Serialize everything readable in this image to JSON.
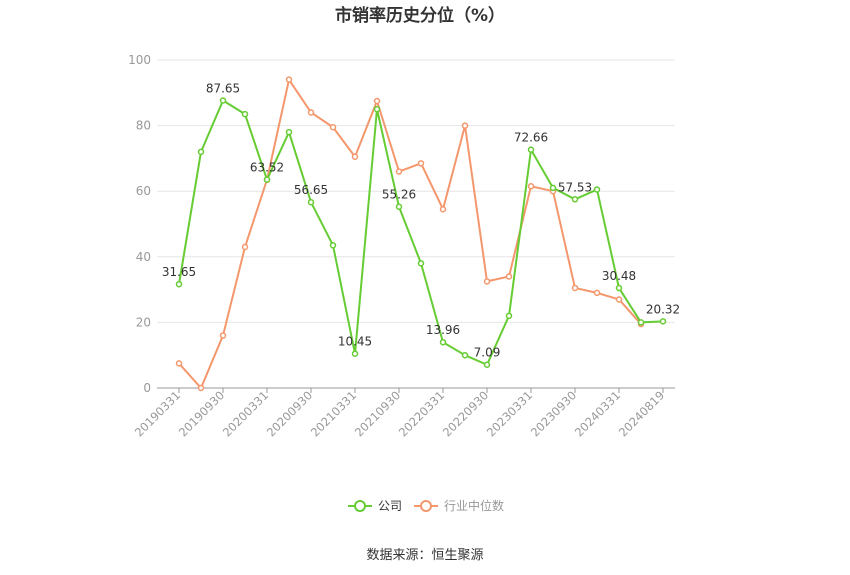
{
  "chart_data": {
    "type": "line",
    "title": "市销率历史分位（%）",
    "source": "数据来源：恒生聚源",
    "ylim": [
      0,
      100
    ],
    "y_ticks": [
      0,
      20,
      40,
      60,
      80,
      100
    ],
    "x_tick_labels": [
      "20190331",
      "20190930",
      "20200331",
      "20200930",
      "20210331",
      "20210930",
      "20220331",
      "20220930",
      "20230331",
      "20230930",
      "20240331",
      "20240819"
    ],
    "grid": true,
    "legend_position": "bottom",
    "series": [
      {
        "name": "公司",
        "color": "#66cc33",
        "values": [
          31.65,
          72,
          87.65,
          83.5,
          63.52,
          78,
          56.65,
          43.5,
          10.45,
          85,
          55.26,
          38,
          13.96,
          10,
          7.09,
          22,
          72.66,
          61,
          57.53,
          60.5,
          30.48,
          20,
          20.32
        ],
        "labels": {
          "0": "31.65",
          "2": "87.65",
          "4": "63.52",
          "6": "56.65",
          "8": "10.45",
          "10": "55.26",
          "12": "13.96",
          "14": "7.09",
          "16": "72.66",
          "18": "57.53",
          "20": "30.48",
          "22": "20.32"
        }
      },
      {
        "name": "行业中位数",
        "color": "#f4976c",
        "values": [
          7.5,
          0,
          16,
          43,
          63.5,
          94,
          84,
          79.5,
          70.5,
          87.5,
          66,
          68.5,
          54.5,
          80,
          32.5,
          34,
          61.5,
          60,
          30.5,
          29,
          27,
          19.5,
          null
        ]
      }
    ]
  }
}
